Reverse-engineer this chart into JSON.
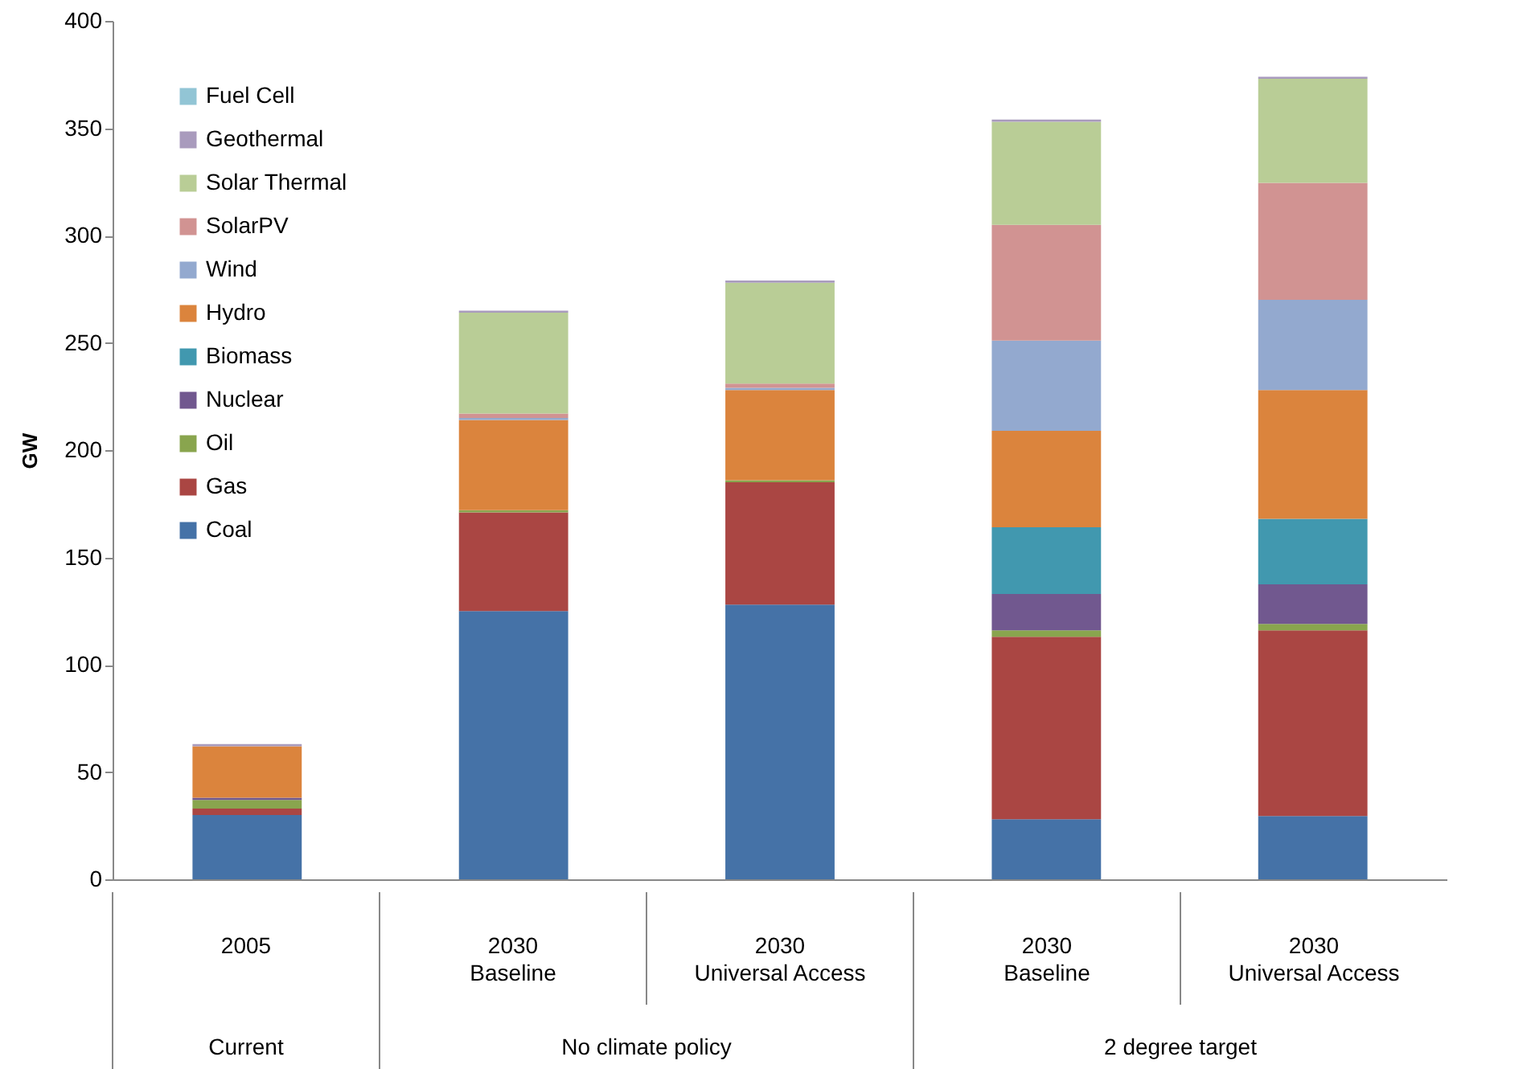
{
  "chart_data": {
    "type": "bar",
    "stacked": true,
    "ylabel": "GW",
    "categories": [
      "2005",
      "2030 Baseline",
      "2030 Universal Access",
      "2030 Baseline",
      "2030 Universal Access"
    ],
    "annotations": [
      "Current",
      "No climate policy",
      "2 degree target"
    ],
    "ylim": [
      0,
      400
    ],
    "yticks": [
      0,
      50,
      100,
      150,
      200,
      250,
      300,
      350,
      400
    ],
    "grid": false,
    "legend": "top left",
    "series": [
      {
        "name": "Coal",
        "color": "#4572a7",
        "values": [
          30,
          125,
          128,
          28,
          29.5
        ]
      },
      {
        "name": "Gas",
        "color": "#aa4643",
        "values": [
          3,
          46,
          57,
          85,
          86.5
        ]
      },
      {
        "name": "Oil",
        "color": "#89a54e",
        "values": [
          4,
          1,
          1,
          3,
          3
        ]
      },
      {
        "name": "Nuclear",
        "color": "#71588f",
        "values": [
          1,
          0,
          0,
          17,
          18.5
        ]
      },
      {
        "name": "Biomass",
        "color": "#4198af",
        "values": [
          0,
          0,
          0,
          31,
          30.5
        ]
      },
      {
        "name": "Hydro",
        "color": "#db843d",
        "values": [
          24,
          42,
          42,
          45,
          60
        ]
      },
      {
        "name": "Wind",
        "color": "#93a9cf",
        "values": [
          0,
          1,
          1,
          42,
          42
        ]
      },
      {
        "name": "SolarPV",
        "color": "#d19392",
        "values": [
          0,
          2,
          2,
          54,
          54.5
        ]
      },
      {
        "name": "Solar Thermal",
        "color": "#b9cd96",
        "values": [
          0,
          47,
          47,
          48,
          48.5
        ]
      },
      {
        "name": "Geothermal",
        "color": "#a99bbd",
        "values": [
          1,
          1,
          1,
          1,
          1
        ]
      },
      {
        "name": "Fuel Cell",
        "color": "#92c5d5",
        "values": [
          0,
          0,
          0,
          0,
          0
        ]
      }
    ]
  }
}
